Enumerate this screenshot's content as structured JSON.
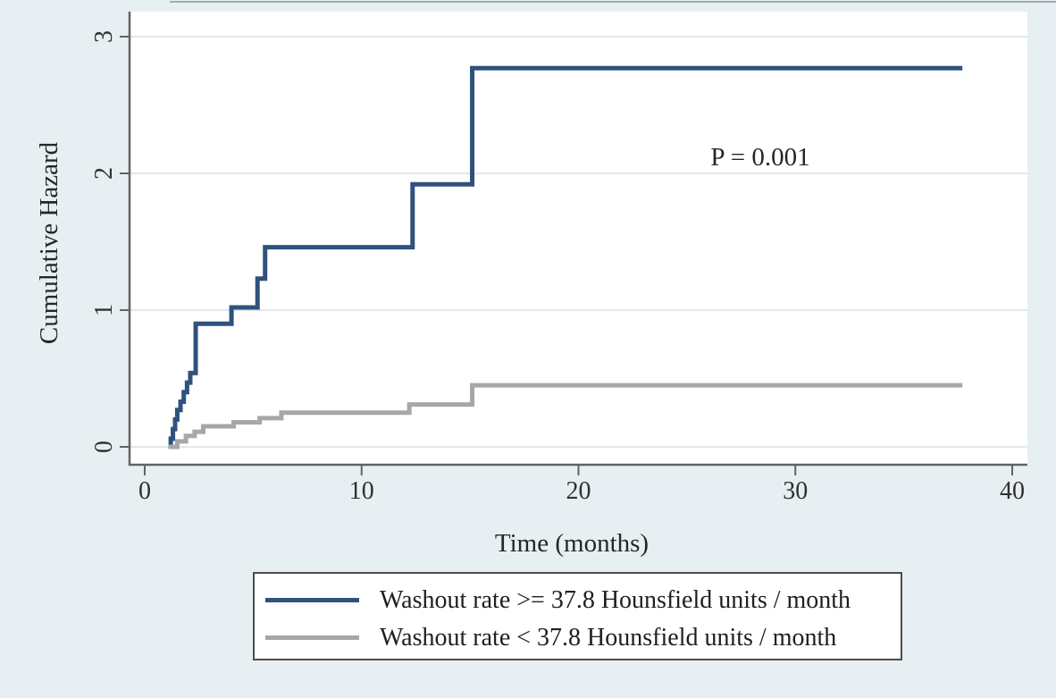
{
  "figure": {
    "background_color": "#e7eff2",
    "plot_background_color": "#ffffff",
    "axis_color": "#636363",
    "gridline_color": "#dfeaef",
    "annotation_text": "P = 0.001"
  },
  "chart_data": {
    "type": "line",
    "subtype": "step-cumulative-hazard",
    "title": "",
    "xlabel": "Time (months)",
    "ylabel": "Cumulative Hazard",
    "xlim": [
      0,
      40
    ],
    "ylim": [
      0,
      3
    ],
    "xticks": {
      "values": [
        0,
        10,
        20,
        30,
        40
      ],
      "labels": [
        "0",
        "10",
        "20",
        "30",
        "40"
      ]
    },
    "yticks": {
      "values": [
        0,
        1,
        2,
        3
      ],
      "labels": [
        "0",
        "1",
        "2",
        "3"
      ]
    },
    "grid": "horizontal",
    "legend_position": "below-plot",
    "annotation": {
      "text": "P = 0.001",
      "x": 28.4,
      "y": 2.11
    },
    "series": [
      {
        "name": "Washout rate >= 37.8 Hounsfield units / month",
        "color": "#2e527c",
        "line_width": 5,
        "points": [
          [
            1.1,
            0
          ],
          [
            1.2,
            0.06
          ],
          [
            1.3,
            0.13
          ],
          [
            1.4,
            0.2
          ],
          [
            1.5,
            0.27
          ],
          [
            1.65,
            0.33
          ],
          [
            1.8,
            0.4
          ],
          [
            1.95,
            0.47
          ],
          [
            2.1,
            0.54
          ],
          [
            2.35,
            0.9
          ],
          [
            4.0,
            1.02
          ],
          [
            5.2,
            1.23
          ],
          [
            5.55,
            1.46
          ],
          [
            12.35,
            1.92
          ],
          [
            15.1,
            2.77
          ],
          [
            37.7,
            2.77
          ]
        ]
      },
      {
        "name": "Washout rate < 37.8 Hounsfield units / month",
        "color": "#a7a7a7",
        "line_width": 5,
        "points": [
          [
            1.1,
            0
          ],
          [
            1.5,
            0.04
          ],
          [
            1.9,
            0.08
          ],
          [
            2.3,
            0.11
          ],
          [
            2.7,
            0.15
          ],
          [
            4.1,
            0.18
          ],
          [
            5.3,
            0.21
          ],
          [
            6.3,
            0.25
          ],
          [
            12.2,
            0.31
          ],
          [
            15.1,
            0.45
          ],
          [
            37.7,
            0.45
          ]
        ]
      }
    ]
  }
}
